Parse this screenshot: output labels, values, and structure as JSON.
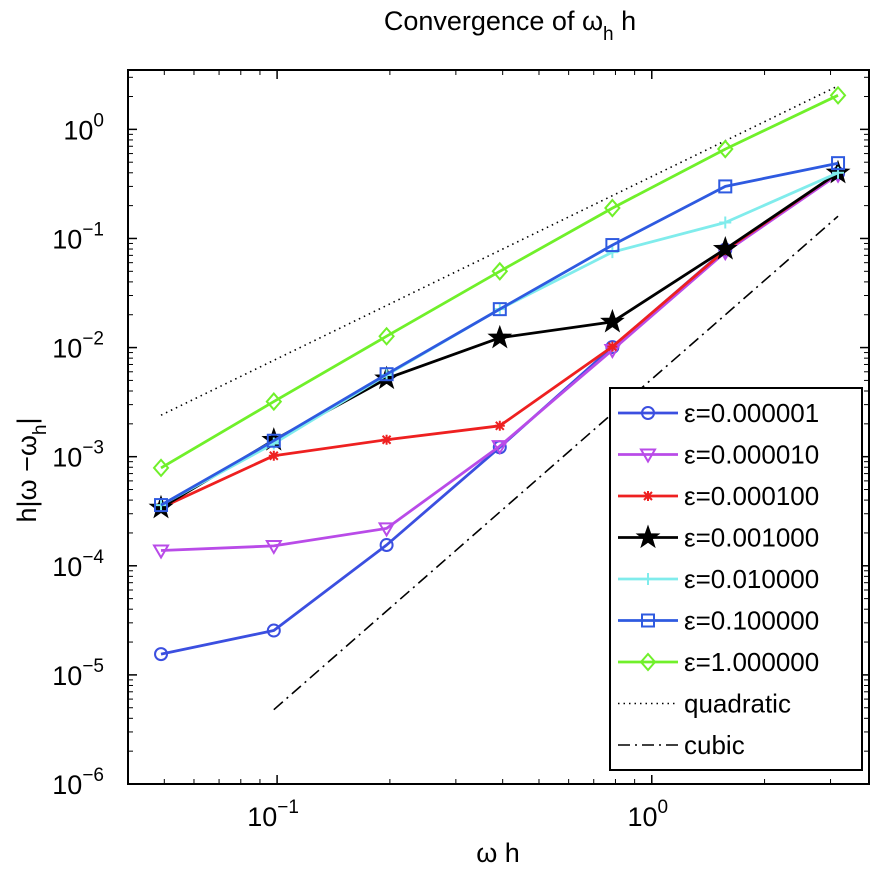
{
  "chart_data": {
    "type": "line",
    "title": "Convergence of ω",
    "title_sub": "h",
    "title_tail": " h",
    "xlabel": "ω h",
    "ylabel": "h|ω −ω",
    "ylabel_sub": "h",
    "ylabel_tail": "|",
    "xscale": "log",
    "yscale": "log",
    "xlim": [
      0.04,
      3.8
    ],
    "ylim": [
      1e-06,
      3.5
    ],
    "x": [
      0.049,
      0.098,
      0.196,
      0.393,
      0.785,
      1.571,
      3.1416
    ],
    "x_ticks": [
      {
        "value": 0.1,
        "base": "10",
        "exp": "−1"
      },
      {
        "value": 1,
        "base": "10",
        "exp": "0"
      }
    ],
    "y_ticks": [
      {
        "value": 1e-06,
        "base": "10",
        "exp": "−6"
      },
      {
        "value": 1e-05,
        "base": "10",
        "exp": "−5"
      },
      {
        "value": 0.0001,
        "base": "10",
        "exp": "−4"
      },
      {
        "value": 0.001,
        "base": "10",
        "exp": "−3"
      },
      {
        "value": 0.01,
        "base": "10",
        "exp": "−2"
      },
      {
        "value": 0.1,
        "base": "10",
        "exp": "−1"
      },
      {
        "value": 1,
        "base": "10",
        "exp": "0"
      }
    ],
    "series": [
      {
        "name": "ε=0.000001",
        "color": "#3b4fe0",
        "marker": "circle",
        "values": [
          1.55e-05,
          2.55e-05,
          0.000155,
          0.00122,
          0.0101,
          0.079,
          0.395
        ]
      },
      {
        "name": "ε=0.000010",
        "color": "#b94be8",
        "marker": "triangle-down",
        "values": [
          0.000138,
          0.000152,
          0.00022,
          0.00125,
          0.0095,
          0.075,
          0.385
        ]
      },
      {
        "name": "ε=0.000100",
        "color": "#ee2020",
        "marker": "asterisk",
        "values": [
          0.00034,
          0.00102,
          0.00143,
          0.00192,
          0.0102,
          0.078,
          0.4
        ]
      },
      {
        "name": "ε=0.001000",
        "color": "#000000",
        "marker": "star",
        "values": [
          0.00034,
          0.00142,
          0.0052,
          0.0123,
          0.0172,
          0.08,
          0.4
        ]
      },
      {
        "name": "ε=0.010000",
        "color": "#80ecec",
        "marker": "plus",
        "values": [
          0.00036,
          0.00132,
          0.0056,
          0.0225,
          0.075,
          0.14,
          0.4
        ]
      },
      {
        "name": "ε=0.100000",
        "color": "#2e5ae0",
        "marker": "square",
        "values": [
          0.00036,
          0.0014,
          0.0057,
          0.0225,
          0.087,
          0.3,
          0.49
        ]
      },
      {
        "name": "ε=1.000000",
        "color": "#70f02a",
        "marker": "diamond",
        "values": [
          0.00079,
          0.0032,
          0.0127,
          0.05,
          0.19,
          0.66,
          2.05
        ]
      }
    ],
    "reference_lines": [
      {
        "name": "quadratic",
        "color": "#000000",
        "style": "dotted",
        "x": [
          0.049,
          3.1416
        ],
        "values": [
          0.0024,
          2.5
        ]
      },
      {
        "name": "cubic",
        "color": "#000000",
        "style": "dashdot",
        "x": [
          0.098,
          3.1416
        ],
        "values": [
          4.8e-06,
          0.16
        ]
      }
    ],
    "legend_position": "lower-right"
  }
}
